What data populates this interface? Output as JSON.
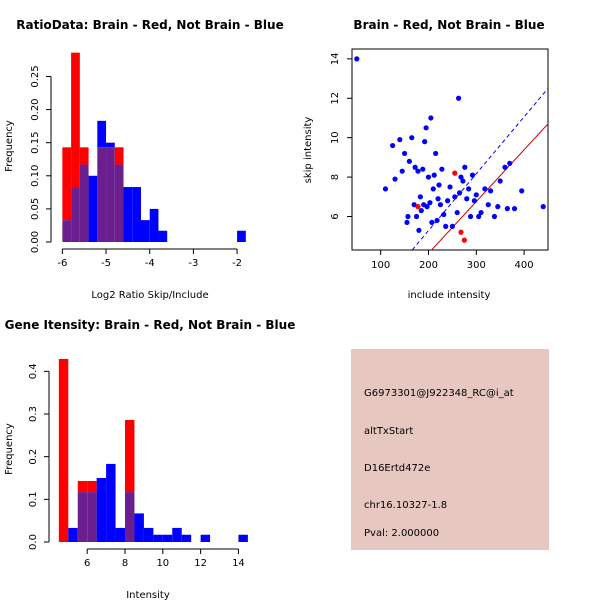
{
  "colors": {
    "red": "#ff0000",
    "blue": "#0000ff",
    "overlap": "#6b1f8f",
    "dark_red": "#cc0000",
    "info_bg": "#e6c8c0",
    "pval": "#cc0000"
  },
  "chart_data": [
    {
      "type": "bar",
      "title": "RatioData: Brain - Red, Not Brain - Blue",
      "xlabel": "Log2 Ratio Skip/Include",
      "ylabel": "Frequency",
      "xlim": [
        -6.1,
        -1.75
      ],
      "ylim": [
        0,
        0.29
      ],
      "xticks": [
        -6,
        -5,
        -4,
        -3,
        -2
      ],
      "yticks": [
        0.0,
        0.05,
        0.1,
        0.15,
        0.2,
        0.25
      ],
      "ytick_labels": [
        "0.00",
        "0.05",
        "0.10",
        "0.15",
        "0.20",
        "0.25"
      ],
      "bin_edges": [
        -6.0,
        -5.8,
        -5.6,
        -5.4,
        -5.2,
        -5.0,
        -4.8,
        -4.6,
        -4.4,
        -4.2,
        -4.0,
        -3.8,
        -3.6,
        -3.4,
        -3.2,
        -3.0,
        -2.8,
        -2.6,
        -2.4,
        -2.2,
        -2.0,
        -1.8
      ],
      "series": [
        {
          "name": "Brain",
          "color": "red",
          "values": [
            0.143,
            0.286,
            0.143,
            0,
            0.143,
            0.143,
            0.143,
            0,
            0,
            0,
            0,
            0,
            0,
            0,
            0,
            0,
            0,
            0,
            0,
            0,
            0
          ]
        },
        {
          "name": "Not Brain",
          "color": "blue",
          "values": [
            0.033,
            0.083,
            0.117,
            0.1,
            0.183,
            0.15,
            0.117,
            0.083,
            0.083,
            0.033,
            0.05,
            0.017,
            0,
            0,
            0,
            0,
            0,
            0,
            0,
            0,
            0.017
          ]
        }
      ]
    },
    {
      "type": "scatter",
      "title": "Brain - Red, Not Brain - Blue",
      "xlabel": "include intensity",
      "ylabel": "skip intensity",
      "xlim": [
        40,
        450
      ],
      "ylim": [
        4.3,
        14.5
      ],
      "xticks": [
        100,
        200,
        300,
        400
      ],
      "yticks": [
        6,
        8,
        10,
        12,
        14
      ],
      "points_blue": [
        [
          50,
          14.0
        ],
        [
          110,
          7.4
        ],
        [
          125,
          9.6
        ],
        [
          130,
          7.9
        ],
        [
          140,
          9.9
        ],
        [
          145,
          8.3
        ],
        [
          150,
          9.2
        ],
        [
          155,
          5.7
        ],
        [
          157,
          6.0
        ],
        [
          160,
          8.8
        ],
        [
          165,
          10.0
        ],
        [
          170,
          6.6
        ],
        [
          172,
          8.5
        ],
        [
          175,
          6.0
        ],
        [
          178,
          8.3
        ],
        [
          180,
          5.3
        ],
        [
          183,
          7.0
        ],
        [
          185,
          6.3
        ],
        [
          188,
          8.4
        ],
        [
          190,
          6.6
        ],
        [
          192,
          9.8
        ],
        [
          195,
          10.5
        ],
        [
          197,
          6.5
        ],
        [
          200,
          8.0
        ],
        [
          203,
          6.7
        ],
        [
          205,
          11.0
        ],
        [
          207,
          5.7
        ],
        [
          210,
          7.4
        ],
        [
          212,
          8.1
        ],
        [
          215,
          9.2
        ],
        [
          218,
          5.8
        ],
        [
          220,
          6.9
        ],
        [
          222,
          7.6
        ],
        [
          225,
          6.6
        ],
        [
          228,
          8.4
        ],
        [
          232,
          6.1
        ],
        [
          236,
          5.5
        ],
        [
          240,
          6.8
        ],
        [
          245,
          7.5
        ],
        [
          250,
          5.5
        ],
        [
          255,
          7.0
        ],
        [
          260,
          6.2
        ],
        [
          263,
          12.0
        ],
        [
          265,
          7.2
        ],
        [
          268,
          8.0
        ],
        [
          272,
          7.8
        ],
        [
          276,
          8.5
        ],
        [
          280,
          6.9
        ],
        [
          284,
          7.4
        ],
        [
          288,
          6.0
        ],
        [
          292,
          8.1
        ],
        [
          296,
          6.8
        ],
        [
          300,
          7.1
        ],
        [
          305,
          6.0
        ],
        [
          310,
          6.2
        ],
        [
          318,
          7.4
        ],
        [
          325,
          6.6
        ],
        [
          330,
          7.3
        ],
        [
          338,
          6.0
        ],
        [
          345,
          6.5
        ],
        [
          350,
          7.8
        ],
        [
          360,
          8.5
        ],
        [
          365,
          6.4
        ],
        [
          370,
          8.7
        ],
        [
          380,
          6.4
        ],
        [
          395,
          7.3
        ],
        [
          440,
          6.5
        ]
      ],
      "points_red": [
        [
          178,
          6.5
        ],
        [
          255,
          8.2
        ],
        [
          268,
          5.2
        ],
        [
          275,
          4.8
        ]
      ],
      "lines": [
        {
          "color": "blue",
          "style": "dashed",
          "from": [
            100,
            2.4
          ],
          "to": [
            450,
            12.5
          ]
        },
        {
          "color": "dark_red",
          "style": "solid",
          "from": [
            100,
            1.5
          ],
          "to": [
            450,
            10.7
          ]
        }
      ]
    },
    {
      "type": "bar",
      "title": "Gene Itensity: Brain - Red, Not Brain - Blue",
      "xlabel": "Intensity",
      "ylabel": "Frequency",
      "xlim": [
        4.35,
        14.4
      ],
      "ylim": [
        0,
        0.45
      ],
      "xticks": [
        6,
        8,
        10,
        12,
        14
      ],
      "yticks": [
        0.0,
        0.1,
        0.2,
        0.3,
        0.4
      ],
      "ytick_labels": [
        "0.0",
        "0.1",
        "0.2",
        "0.3",
        "0.4"
      ],
      "bin_edges": [
        4.5,
        5.0,
        5.5,
        6.0,
        6.5,
        7.0,
        7.5,
        8.0,
        8.5,
        9.0,
        9.5,
        10.0,
        10.5,
        11.0,
        11.5,
        12.0,
        12.5,
        13.0,
        13.5,
        14.0,
        14.5
      ],
      "series": [
        {
          "name": "Brain",
          "color": "red",
          "values": [
            0.429,
            0,
            0.143,
            0.143,
            0,
            0,
            0,
            0.286,
            0,
            0,
            0,
            0,
            0,
            0,
            0,
            0,
            0,
            0,
            0,
            0
          ]
        },
        {
          "name": "Not Brain",
          "color": "blue",
          "values": [
            0,
            0.033,
            0.117,
            0.117,
            0.15,
            0.183,
            0.033,
            0.117,
            0.067,
            0.033,
            0.017,
            0.017,
            0.033,
            0.017,
            0,
            0.017,
            0,
            0,
            0,
            0.017
          ]
        }
      ]
    }
  ],
  "info": {
    "probe_id": "G6973301@J922348_RC@i_at",
    "event_type": "altTxStart",
    "gene_name": "D16Ertd472e",
    "location": "chr16.10327-1.8",
    "pval": "Pval: 2.000000"
  }
}
